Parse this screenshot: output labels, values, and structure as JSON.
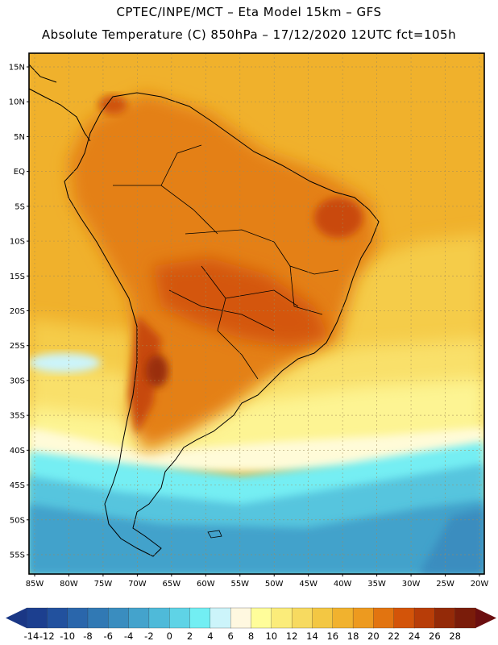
{
  "header": {
    "line1": "CPTEC/INPE/MCT –   Eta Model 15km – GFS",
    "line2": "Absolute Temperature (C) 850hPa – 17/12/2020 12UTC fct=105h"
  },
  "map": {
    "lat_labels": [
      "15N",
      "10N",
      "5N",
      "EQ",
      "5S",
      "10S",
      "15S",
      "20S",
      "25S",
      "30S",
      "35S",
      "40S",
      "45S",
      "50S",
      "55S"
    ],
    "lon_labels": [
      "85W",
      "80W",
      "75W",
      "70W",
      "65W",
      "60W",
      "55W",
      "50W",
      "45W",
      "40W",
      "35W",
      "30W",
      "25W",
      "20W"
    ],
    "lat_range": [
      15,
      -55
    ],
    "lon_range": [
      -85,
      -20
    ]
  },
  "colorbar": {
    "labels": [
      "-14",
      "-12",
      "-10",
      "-8",
      "-6",
      "-4",
      "-2",
      "0",
      "2",
      "4",
      "6",
      "8",
      "10",
      "12",
      "14",
      "16",
      "18",
      "20",
      "22",
      "24",
      "26",
      "28"
    ],
    "colors": [
      "#1c3f8f",
      "#22519e",
      "#2a66ab",
      "#3179b4",
      "#3a8dbf",
      "#44a3cc",
      "#4fbad9",
      "#5fd3e6",
      "#72eef3",
      "#ccf4fa",
      "#fff8e0",
      "#fffd9a",
      "#fbec7a",
      "#f7da60",
      "#f3c743",
      "#f1b22e",
      "#ed9a1f",
      "#e27410",
      "#d35409",
      "#b83d08",
      "#942a08",
      "#7a1c0a"
    ],
    "under_color": "#1a3785",
    "over_color": "#6b0f10"
  }
}
